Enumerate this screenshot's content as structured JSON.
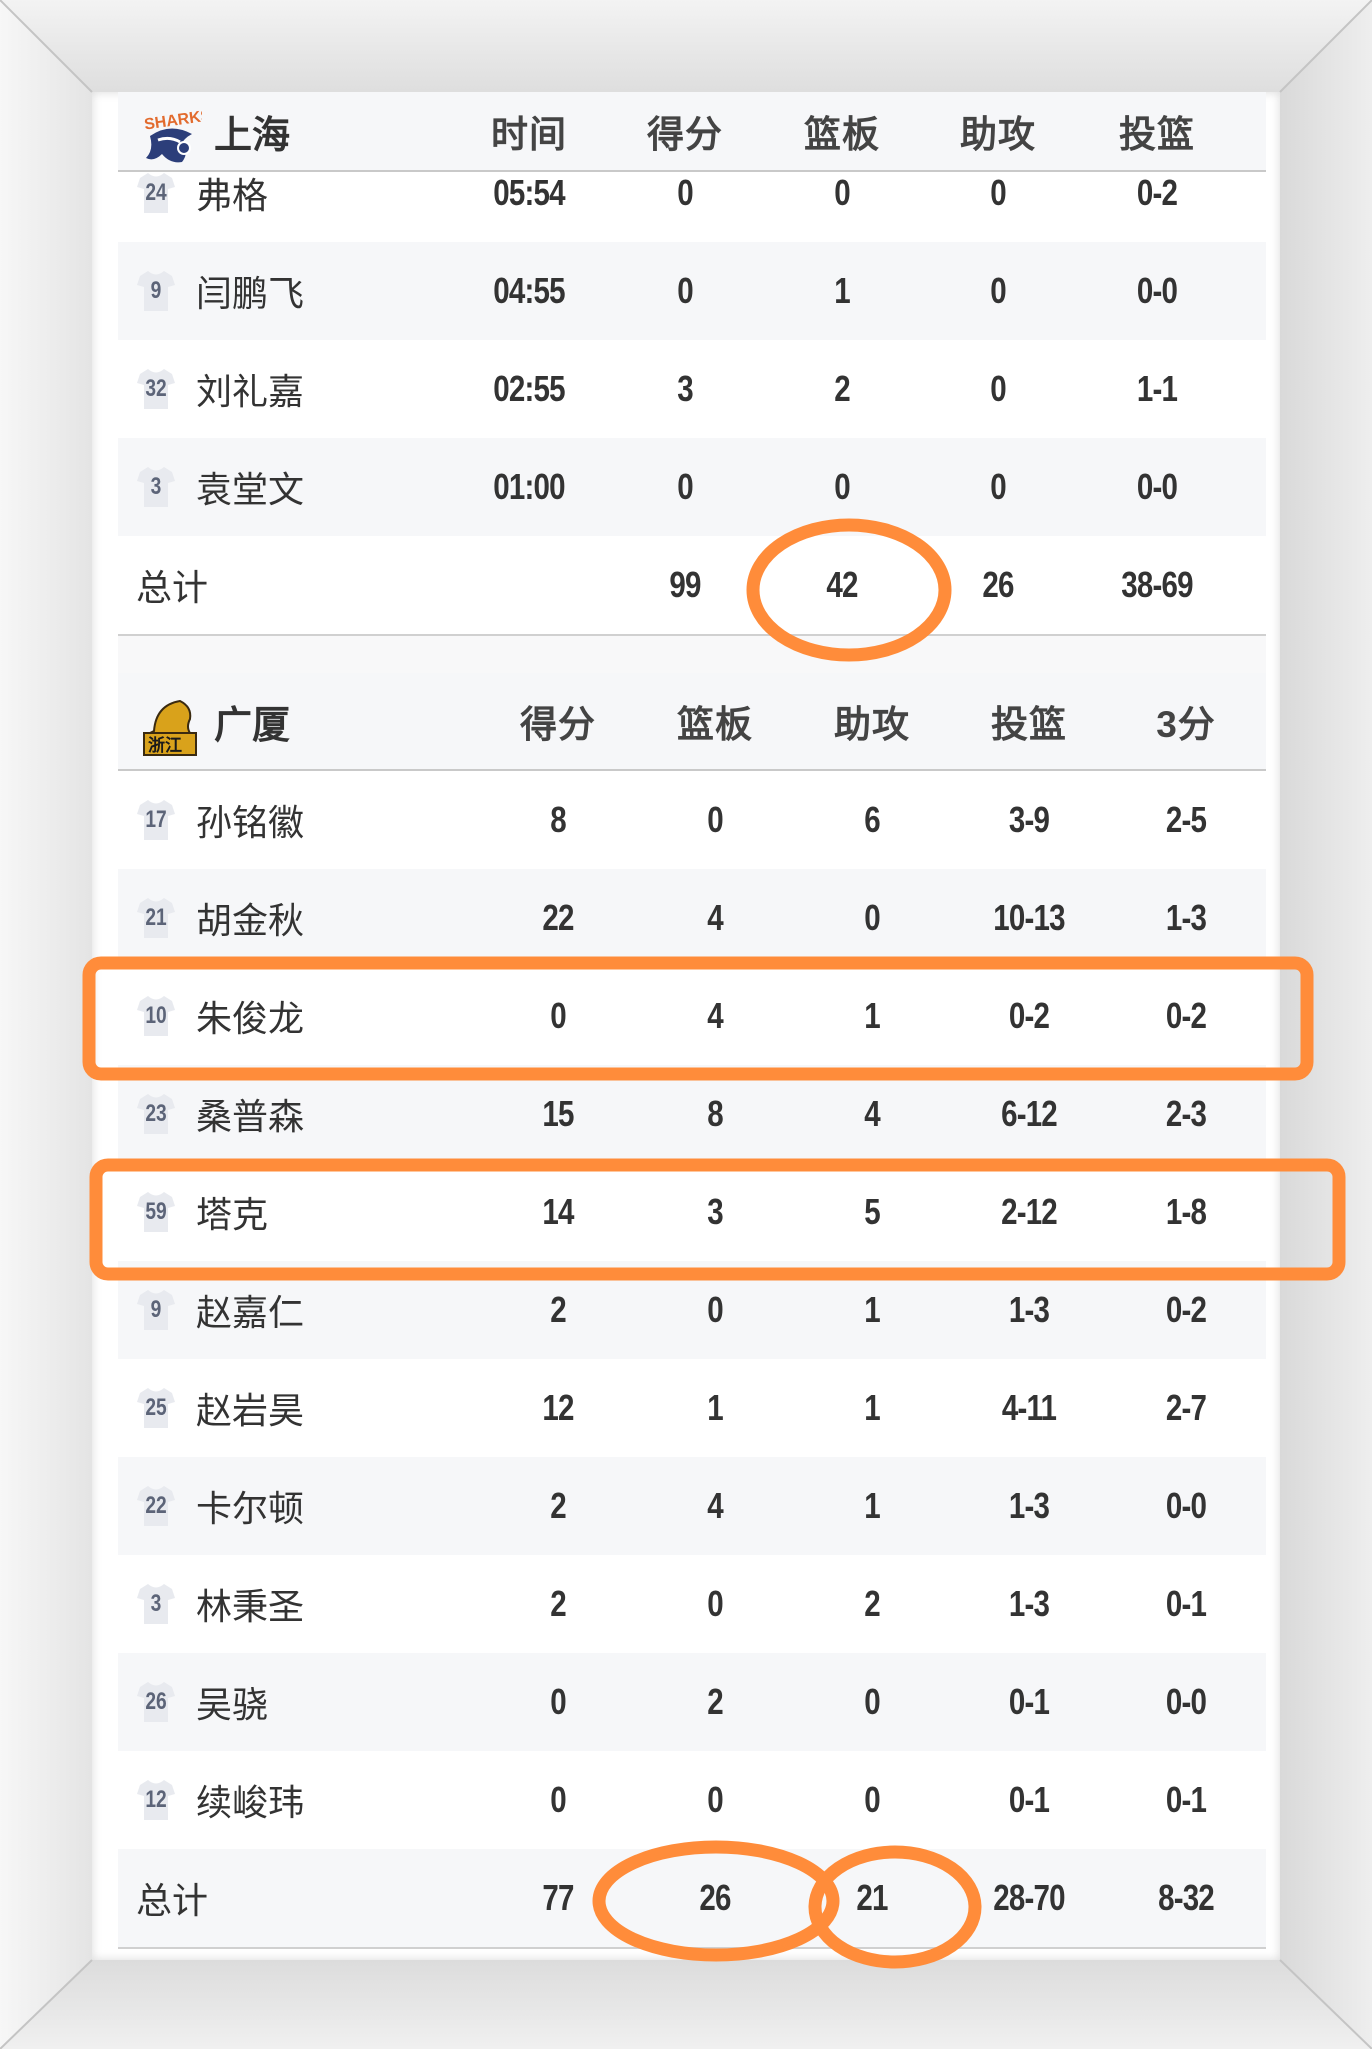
{
  "teams": [
    {
      "name": "上海",
      "logo": "sharks-logo",
      "columns": [
        "时间",
        "得分",
        "篮板",
        "助攻",
        "投篮"
      ],
      "players": [
        {
          "number": "24",
          "name": "弗格",
          "stats": [
            "05:54",
            "0",
            "0",
            "0",
            "0-2"
          ]
        },
        {
          "number": "9",
          "name": "闫鹏飞",
          "stats": [
            "04:55",
            "0",
            "1",
            "0",
            "0-0"
          ]
        },
        {
          "number": "32",
          "name": "刘礼嘉",
          "stats": [
            "02:55",
            "3",
            "2",
            "0",
            "1-1"
          ]
        },
        {
          "number": "3",
          "name": "袁堂文",
          "stats": [
            "01:00",
            "0",
            "0",
            "0",
            "0-0"
          ]
        }
      ],
      "total": {
        "label": "总计",
        "stats": [
          "",
          "99",
          "42",
          "26",
          "38-69"
        ]
      }
    },
    {
      "name": "广厦",
      "logo": "lions-logo",
      "columns": [
        "得分",
        "篮板",
        "助攻",
        "投篮",
        "3分"
      ],
      "players": [
        {
          "number": "17",
          "name": "孙铭徽",
          "stats": [
            "8",
            "0",
            "6",
            "3-9",
            "2-5"
          ]
        },
        {
          "number": "21",
          "name": "胡金秋",
          "stats": [
            "22",
            "4",
            "0",
            "10-13",
            "1-3"
          ]
        },
        {
          "number": "10",
          "name": "朱俊龙",
          "stats": [
            "0",
            "4",
            "1",
            "0-2",
            "0-2"
          ]
        },
        {
          "number": "23",
          "name": "桑普森",
          "stats": [
            "15",
            "8",
            "4",
            "6-12",
            "2-3"
          ]
        },
        {
          "number": "59",
          "name": "塔克",
          "stats": [
            "14",
            "3",
            "5",
            "2-12",
            "1-8"
          ]
        },
        {
          "number": "9",
          "name": "赵嘉仁",
          "stats": [
            "2",
            "0",
            "1",
            "1-3",
            "0-2"
          ]
        },
        {
          "number": "25",
          "name": "赵岩昊",
          "stats": [
            "12",
            "1",
            "1",
            "4-11",
            "2-7"
          ]
        },
        {
          "number": "22",
          "name": "卡尔顿",
          "stats": [
            "2",
            "4",
            "1",
            "1-3",
            "0-0"
          ]
        },
        {
          "number": "3",
          "name": "林秉圣",
          "stats": [
            "2",
            "0",
            "2",
            "1-3",
            "0-1"
          ]
        },
        {
          "number": "26",
          "name": "吴骁",
          "stats": [
            "0",
            "2",
            "0",
            "0-1",
            "0-0"
          ]
        },
        {
          "number": "12",
          "name": "续峻玮",
          "stats": [
            "0",
            "0",
            "0",
            "0-1",
            "0-1"
          ]
        }
      ],
      "total": {
        "label": "总计",
        "stats": [
          "77",
          "26",
          "21",
          "28-70",
          "8-32"
        ]
      }
    }
  ],
  "annotation_color": "#ff8c3a",
  "accent_colors": {
    "row_alt": "#f6f7f9",
    "jersey": "#e8eaef",
    "jersey_text": "#5c6478"
  }
}
